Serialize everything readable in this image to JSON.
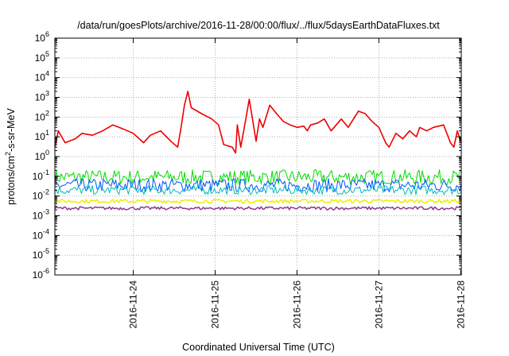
{
  "chart_data": {
    "type": "line",
    "title": "/data/run/goesPlots/archive/2016-11-28/00:00/flux/../flux/5daysEarthDataFluxes.txt",
    "xlabel": "Coordinated Universal Time (UTC)",
    "ylabel": {
      "base": "protons/cm",
      "sup": "2",
      "rest": "-s-sr-MeV"
    },
    "x_range": [
      "2016-11-23T01:00",
      "2016-11-28T00:10"
    ],
    "x_ticks": [
      {
        "x": "2016-11-24",
        "label": "2016-11-24"
      },
      {
        "x": "2016-11-25",
        "label": "2016-11-25"
      },
      {
        "x": "2016-11-26",
        "label": "2016-11-26"
      },
      {
        "x": "2016-11-27",
        "label": "2016-11-27"
      },
      {
        "x": "2016-11-28",
        "label": "2016-11-28"
      }
    ],
    "y_scale": "log",
    "ylim": [
      1e-06,
      1000000.0
    ],
    "y_ticks": [
      {
        "value": 1e-06,
        "base": "10",
        "exp": "-6"
      },
      {
        "value": 1e-05,
        "base": "10",
        "exp": "-5"
      },
      {
        "value": 0.0001,
        "base": "10",
        "exp": "-4"
      },
      {
        "value": 0.001,
        "base": "10",
        "exp": "-3"
      },
      {
        "value": 0.01,
        "base": "10",
        "exp": "-2"
      },
      {
        "value": 0.1,
        "base": "10",
        "exp": "-1"
      },
      {
        "value": 1,
        "base": "10",
        "exp": "0"
      },
      {
        "value": 10,
        "base": "10",
        "exp": "1"
      },
      {
        "value": 100,
        "base": "10",
        "exp": "2"
      },
      {
        "value": 1000,
        "base": "10",
        "exp": "3"
      },
      {
        "value": 10000,
        "base": "10",
        "exp": "4"
      },
      {
        "value": 100000,
        "base": "10",
        "exp": "5"
      },
      {
        "value": 1000000,
        "base": "10",
        "exp": "6"
      }
    ],
    "grid": true,
    "series": [
      {
        "color": "#ee0000",
        "width": 1.6,
        "style": "line",
        "x": [
          "2016-11-23T01:00",
          "2016-11-23T02:00",
          "2016-11-23T04:00",
          "2016-11-23T07:00",
          "2016-11-23T09:00",
          "2016-11-23T12:00",
          "2016-11-23T15:00",
          "2016-11-23T18:00",
          "2016-11-23T21:00",
          "2016-11-24T00:00",
          "2016-11-24T03:00",
          "2016-11-24T05:00",
          "2016-11-24T08:00",
          "2016-11-24T11:00",
          "2016-11-24T13:00",
          "2016-11-24T14:00",
          "2016-11-24T15:00",
          "2016-11-24T16:00",
          "2016-11-24T17:00",
          "2016-11-24T20:00",
          "2016-11-24T23:00",
          "2016-11-25T01:00",
          "2016-11-25T02:30",
          "2016-11-25T05:00",
          "2016-11-25T06:00",
          "2016-11-25T06:30",
          "2016-11-25T07:30",
          "2016-11-25T09:00",
          "2016-11-25T10:00",
          "2016-11-25T12:00",
          "2016-11-25T13:00",
          "2016-11-25T14:00",
          "2016-11-25T16:00",
          "2016-11-25T18:00",
          "2016-11-25T20:00",
          "2016-11-25T22:00",
          "2016-11-26T00:00",
          "2016-11-26T02:00",
          "2016-11-26T03:00",
          "2016-11-26T04:00",
          "2016-11-26T06:00",
          "2016-11-26T08:00",
          "2016-11-26T10:00",
          "2016-11-26T13:00",
          "2016-11-26T15:00",
          "2016-11-26T18:00",
          "2016-11-26T20:00",
          "2016-11-26T22:00",
          "2016-11-27T00:00",
          "2016-11-27T02:00",
          "2016-11-27T03:00",
          "2016-11-27T05:00",
          "2016-11-27T07:00",
          "2016-11-27T09:00",
          "2016-11-27T11:00",
          "2016-11-27T12:00",
          "2016-11-27T14:00",
          "2016-11-27T16:00",
          "2016-11-27T19:00",
          "2016-11-27T21:00",
          "2016-11-27T22:00",
          "2016-11-27T23:00",
          "2016-11-28T00:10"
        ],
        "y": [
          3,
          20,
          5,
          8,
          15,
          12,
          20,
          40,
          25,
          15,
          5,
          12,
          20,
          6,
          3,
          30,
          400,
          2000,
          300,
          150,
          80,
          40,
          4,
          3,
          1.5,
          40,
          3,
          80,
          800,
          6,
          80,
          30,
          400,
          150,
          60,
          40,
          30,
          35,
          20,
          40,
          50,
          80,
          20,
          80,
          30,
          200,
          150,
          60,
          30,
          5,
          3,
          15,
          8,
          20,
          10,
          30,
          20,
          30,
          40,
          5,
          3,
          20,
          5
        ]
      },
      {
        "color": "#00dd00",
        "width": 1,
        "style": "noise",
        "y_center": 0.09,
        "y_spread": 2.4
      },
      {
        "color": "#0055ff",
        "width": 1,
        "style": "noise",
        "y_center": 0.035,
        "y_spread": 2.2
      },
      {
        "color": "#00bbbb",
        "width": 1,
        "style": "noise",
        "y_center": 0.02,
        "y_spread": 1.7
      },
      {
        "color": "#eeee00",
        "width": 1.5,
        "style": "noise",
        "y_center": 0.0055,
        "y_spread": 1.25
      },
      {
        "color": "#8b3a8b",
        "width": 1.5,
        "style": "noise",
        "y_center": 0.0024,
        "y_spread": 1.2
      }
    ]
  }
}
